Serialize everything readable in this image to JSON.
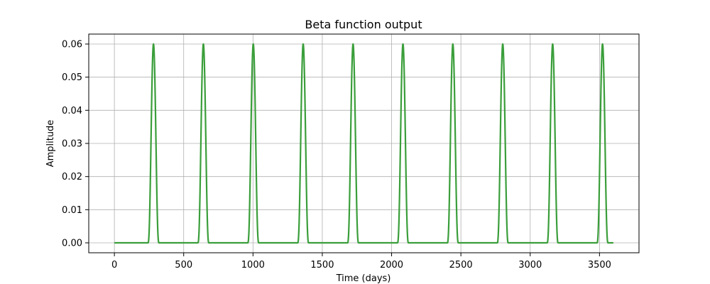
{
  "chart_data": {
    "type": "line",
    "title": "Beta function output",
    "xlabel": "Time (days)",
    "ylabel": "Amplitude",
    "xlim": [
      -185,
      3785
    ],
    "ylim": [
      -0.003,
      0.063
    ],
    "xticks": [
      0,
      500,
      1000,
      1500,
      2000,
      2500,
      3000,
      3500
    ],
    "yticks": [
      0.0,
      0.01,
      0.02,
      0.03,
      0.04,
      0.05,
      0.06
    ],
    "xtick_labels": [
      "0",
      "500",
      "1000",
      "1500",
      "2000",
      "2500",
      "3000",
      "3500"
    ],
    "ytick_labels": [
      "0.00",
      "0.01",
      "0.02",
      "0.03",
      "0.04",
      "0.05",
      "0.06"
    ],
    "grid": true,
    "line_color": "#3a9e3a",
    "series": [
      {
        "x_range": [
          0,
          3600
        ],
        "baseline": 0.0,
        "peak_value": 0.06,
        "peak_x": [
          282,
          642,
          1002,
          1362,
          1722,
          2082,
          2442,
          2802,
          3162,
          3522
        ],
        "peak_halfwidth_days": 40
      }
    ]
  }
}
